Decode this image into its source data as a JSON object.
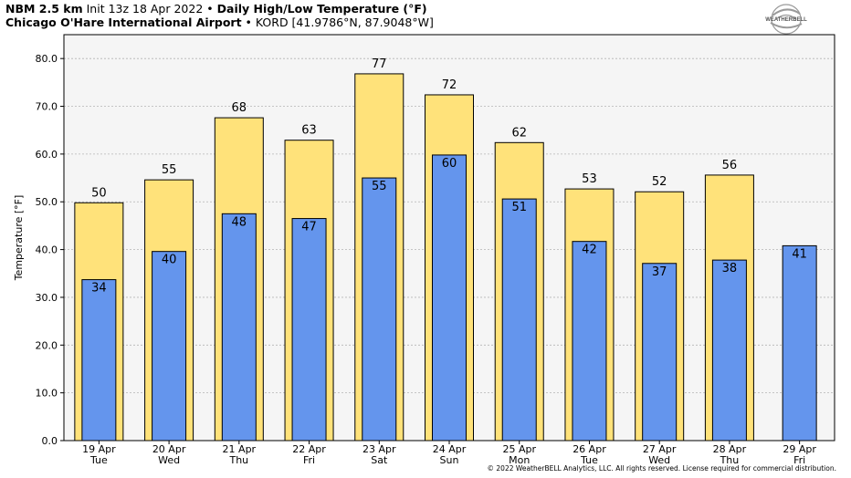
{
  "header": {
    "model": "NBM 2.5 km",
    "init": "Init 13z 18 Apr 2022",
    "sep": "•",
    "title": "Daily High/Low Temperature (°F)",
    "station": "Chicago O'Hare International Airport",
    "station_code": "KORD [41.9786°N, 87.9048°W]"
  },
  "logo": {
    "text": "WEATHERBELL",
    "icon": "weatherbell-swirl-logo"
  },
  "copyright": "© 2022 WeatherBELL Analytics, LLC. All rights reserved. License required for commercial distribution.",
  "colors": {
    "high": "#FFE27A",
    "low": "#6495ED",
    "plot_bg": "#F5F5F5",
    "edge": "#000000"
  },
  "chart_data": {
    "type": "bar",
    "ylabel": "Temperature [°F]",
    "ylim": [
      0,
      85
    ],
    "yticks": [
      "0.0",
      "10.0",
      "20.0",
      "30.0",
      "40.0",
      "50.0",
      "60.0",
      "70.0",
      "80.0"
    ],
    "grid": true,
    "categories": [
      [
        "19 Apr",
        "Tue"
      ],
      [
        "20 Apr",
        "Wed"
      ],
      [
        "21 Apr",
        "Thu"
      ],
      [
        "22 Apr",
        "Fri"
      ],
      [
        "23 Apr",
        "Sat"
      ],
      [
        "24 Apr",
        "Sun"
      ],
      [
        "25 Apr",
        "Mon"
      ],
      [
        "26 Apr",
        "Tue"
      ],
      [
        "27 Apr",
        "Wed"
      ],
      [
        "28 Apr",
        "Thu"
      ],
      [
        "29 Apr",
        "Fri"
      ]
    ],
    "high": [
      49.8,
      54.6,
      67.6,
      62.9,
      76.8,
      72.4,
      62.4,
      52.7,
      52.1,
      55.6,
      null
    ],
    "high_labels": [
      "50",
      "55",
      "68",
      "63",
      "77",
      "72",
      "62",
      "53",
      "52",
      "56",
      ""
    ],
    "low": [
      33.7,
      39.6,
      47.5,
      46.5,
      55.0,
      59.8,
      50.6,
      41.7,
      37.1,
      37.8,
      40.8
    ],
    "low_labels": [
      "34",
      "40",
      "48",
      "47",
      "55",
      "60",
      "51",
      "42",
      "37",
      "38",
      "41"
    ]
  }
}
